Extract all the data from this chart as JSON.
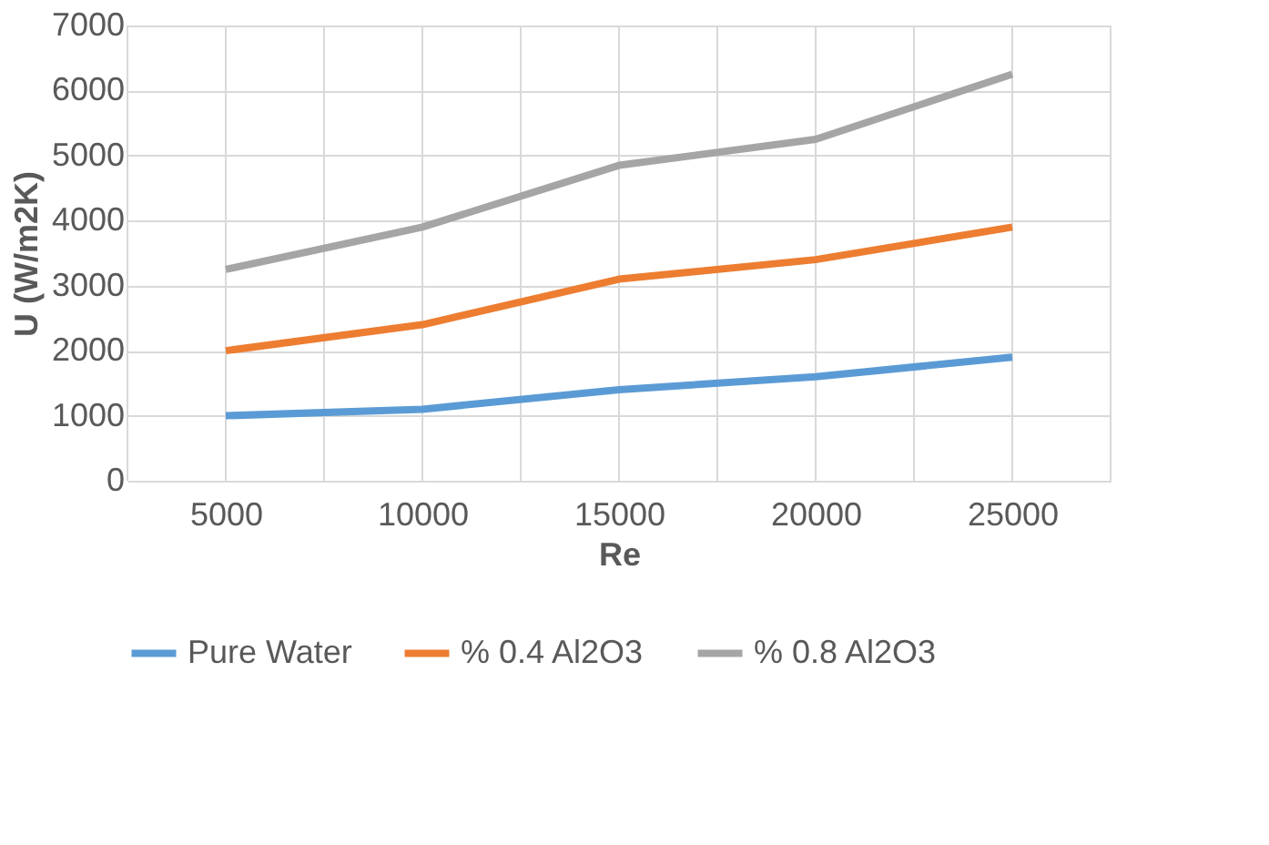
{
  "chart_data": {
    "type": "line",
    "xlabel": "Re",
    "ylabel": "U (W/m2K)",
    "categories": [
      "5000",
      "10000",
      "15000",
      "20000",
      "25000"
    ],
    "series": [
      {
        "name": "Pure Water",
        "color": "#5b9bd5",
        "values": [
          1000,
          1100,
          1400,
          1600,
          1900
        ]
      },
      {
        "name": "% 0.4 Al2O3",
        "color": "#ed7d31",
        "values": [
          2000,
          2400,
          3100,
          3400,
          3900
        ]
      },
      {
        "name": "% 0.8 Al2O3",
        "color": "#a5a5a5",
        "values": [
          3250,
          3900,
          4850,
          5250,
          6250
        ]
      }
    ],
    "ylim": [
      0,
      7000
    ],
    "yticks": [
      0,
      1000,
      2000,
      3000,
      4000,
      5000,
      6000,
      7000
    ],
    "grid": true,
    "legend": "bottom",
    "marker": "none",
    "line_style": "solid"
  }
}
